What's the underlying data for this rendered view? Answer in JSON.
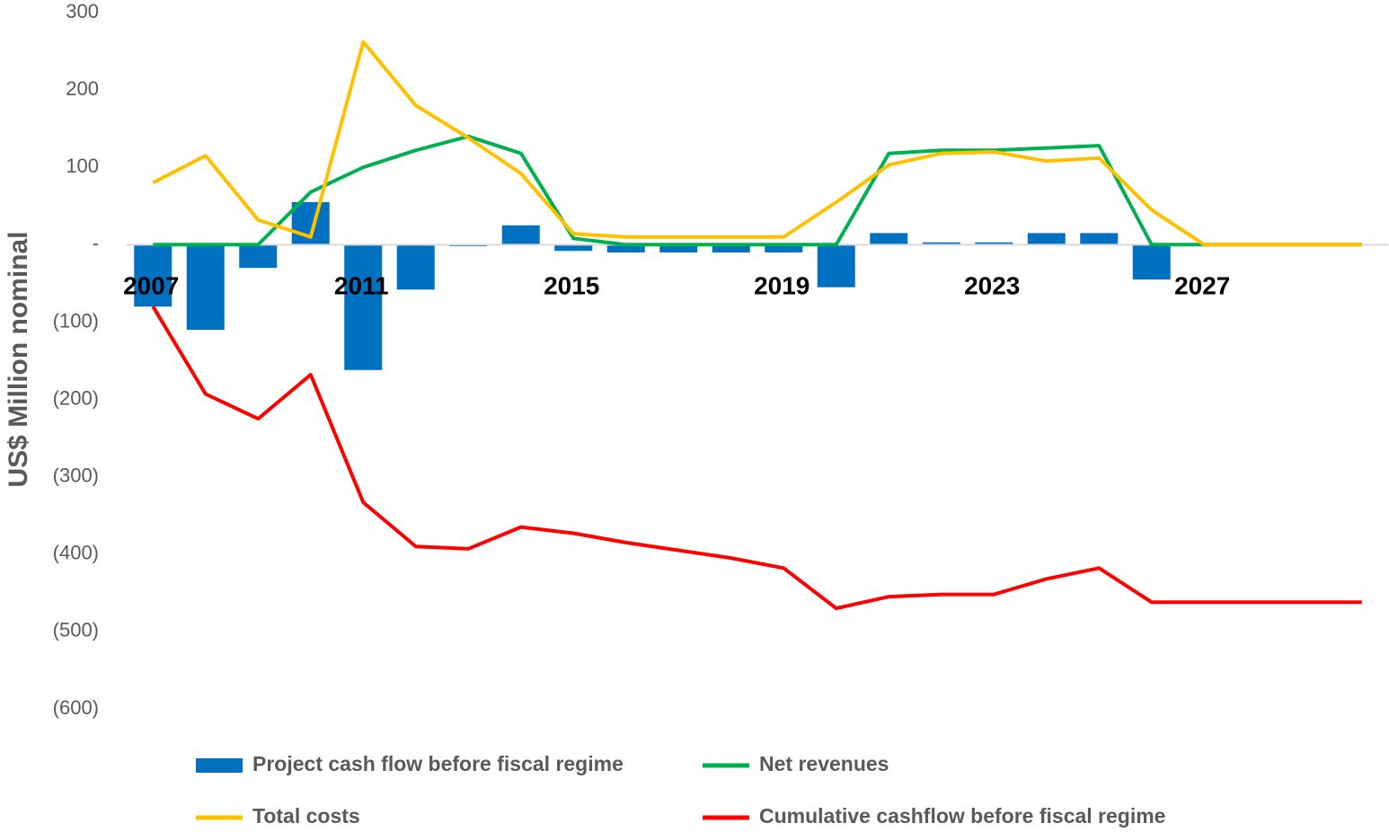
{
  "chart_data": {
    "type": "bar",
    "y_label": "US$ Million nominal",
    "categories": [
      "2007",
      null,
      null,
      null,
      "2011",
      null,
      null,
      null,
      "2015",
      null,
      null,
      null,
      "2019",
      null,
      null,
      null,
      "2023",
      null,
      null,
      null,
      "2027",
      null,
      null,
      null
    ],
    "series": [
      {
        "name": "Project cash flow before fiscal regime",
        "type": "bar",
        "color": "#0070c0",
        "values": [
          -80,
          -110,
          -30,
          55,
          -162,
          -58,
          -2,
          25,
          -8,
          -10,
          -10,
          -10,
          -10,
          -55,
          15,
          3,
          3,
          15,
          15,
          -45,
          0,
          0,
          0,
          0
        ]
      },
      {
        "name": "Net revenues",
        "type": "line",
        "color": "#00b050",
        "values": [
          0,
          0,
          0,
          68,
          100,
          122,
          140,
          118,
          8,
          0,
          0,
          0,
          0,
          0,
          118,
          122,
          122,
          125,
          128,
          0,
          0,
          0,
          0,
          0
        ]
      },
      {
        "name": "Total costs",
        "type": "line",
        "color": "#ffc000",
        "values": [
          80,
          115,
          32,
          10,
          262,
          180,
          138,
          92,
          14,
          10,
          10,
          10,
          10,
          55,
          103,
          118,
          120,
          108,
          112,
          45,
          0,
          0,
          0,
          0
        ]
      },
      {
        "name": "Cumulative cashflow before fiscal regime",
        "type": "line",
        "color": "#ff0000",
        "values": [
          -80,
          -193,
          -225,
          -168,
          -333,
          -390,
          -393,
          -365,
          -373,
          -385,
          -395,
          -405,
          -418,
          -470,
          -455,
          -452,
          -452,
          -432,
          -418,
          -462,
          -462,
          -462,
          -462,
          -462
        ]
      }
    ],
    "ylim": [
      -600,
      300
    ],
    "yticks": [
      300,
      200,
      100,
      {
        "value": 0,
        "label": "-"
      },
      {
        "value": -100,
        "label": "(100)"
      },
      {
        "value": -200,
        "label": "(200)"
      },
      {
        "value": -300,
        "label": "(300)"
      },
      {
        "value": -400,
        "label": "(400)"
      },
      {
        "value": -500,
        "label": "(500)"
      },
      {
        "value": -600,
        "label": "(600)"
      }
    ]
  }
}
